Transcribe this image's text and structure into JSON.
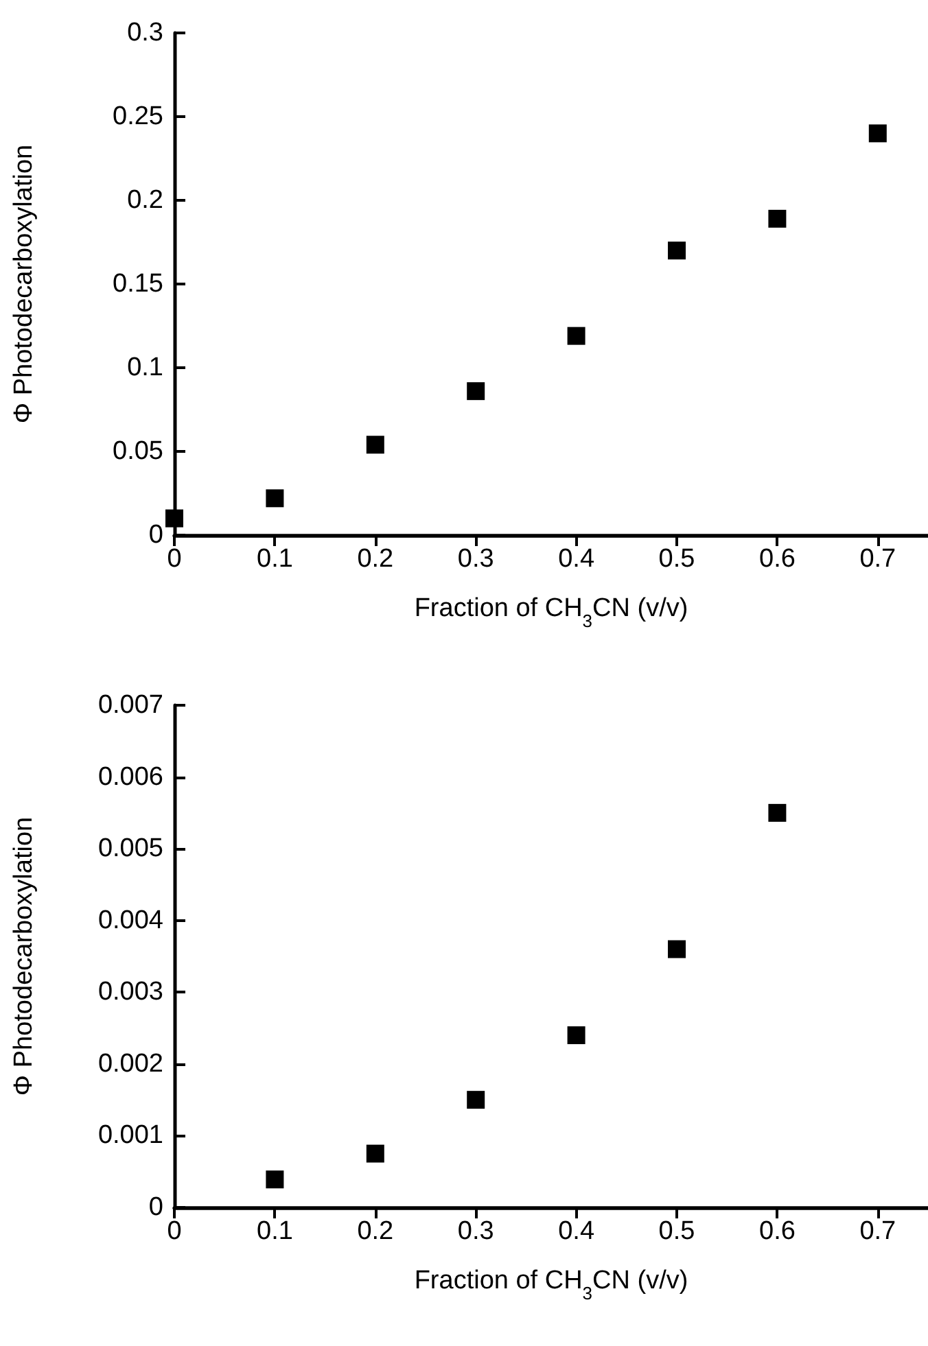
{
  "chart_data": [
    {
      "type": "scatter",
      "xlabel": "Fraction of CH$_{3}$CN (v/v)",
      "ylabel": "Φ Photodecarboxylation",
      "marker": "square",
      "x": [
        0,
        0.1,
        0.2,
        0.3,
        0.4,
        0.5,
        0.6,
        0.7
      ],
      "series": [
        {
          "color": "#000000",
          "values": [
            0.01,
            0.022,
            0.054,
            0.086,
            0.119,
            0.17,
            0.189,
            0.24
          ]
        }
      ],
      "xlim": [
        0,
        0.75
      ],
      "ylim": [
        0,
        0.3
      ],
      "xticks": [
        0,
        0.1,
        0.2,
        0.3,
        0.4,
        0.5,
        0.6,
        0.7
      ],
      "yticks": [
        0,
        0.05,
        0.1,
        0.15,
        0.2,
        0.25,
        0.3
      ]
    },
    {
      "type": "scatter",
      "xlabel": "Fraction of CH$_{3}$CN (v/v)",
      "ylabel": "Φ Photodecarboxylation",
      "marker": "square",
      "x": [
        0.1,
        0.2,
        0.3,
        0.4,
        0.5,
        0.6
      ],
      "series": [
        {
          "color": "#000000",
          "values": [
            0.00039,
            0.00075,
            0.0015,
            0.0024,
            0.0036,
            0.0055
          ]
        }
      ],
      "xlim": [
        0,
        0.75
      ],
      "ylim": [
        0,
        0.007
      ],
      "xticks": [
        0,
        0.1,
        0.2,
        0.3,
        0.4,
        0.5,
        0.6,
        0.7
      ],
      "yticks": [
        0,
        0.001,
        0.002,
        0.003,
        0.004,
        0.005,
        0.006,
        0.007
      ]
    }
  ]
}
